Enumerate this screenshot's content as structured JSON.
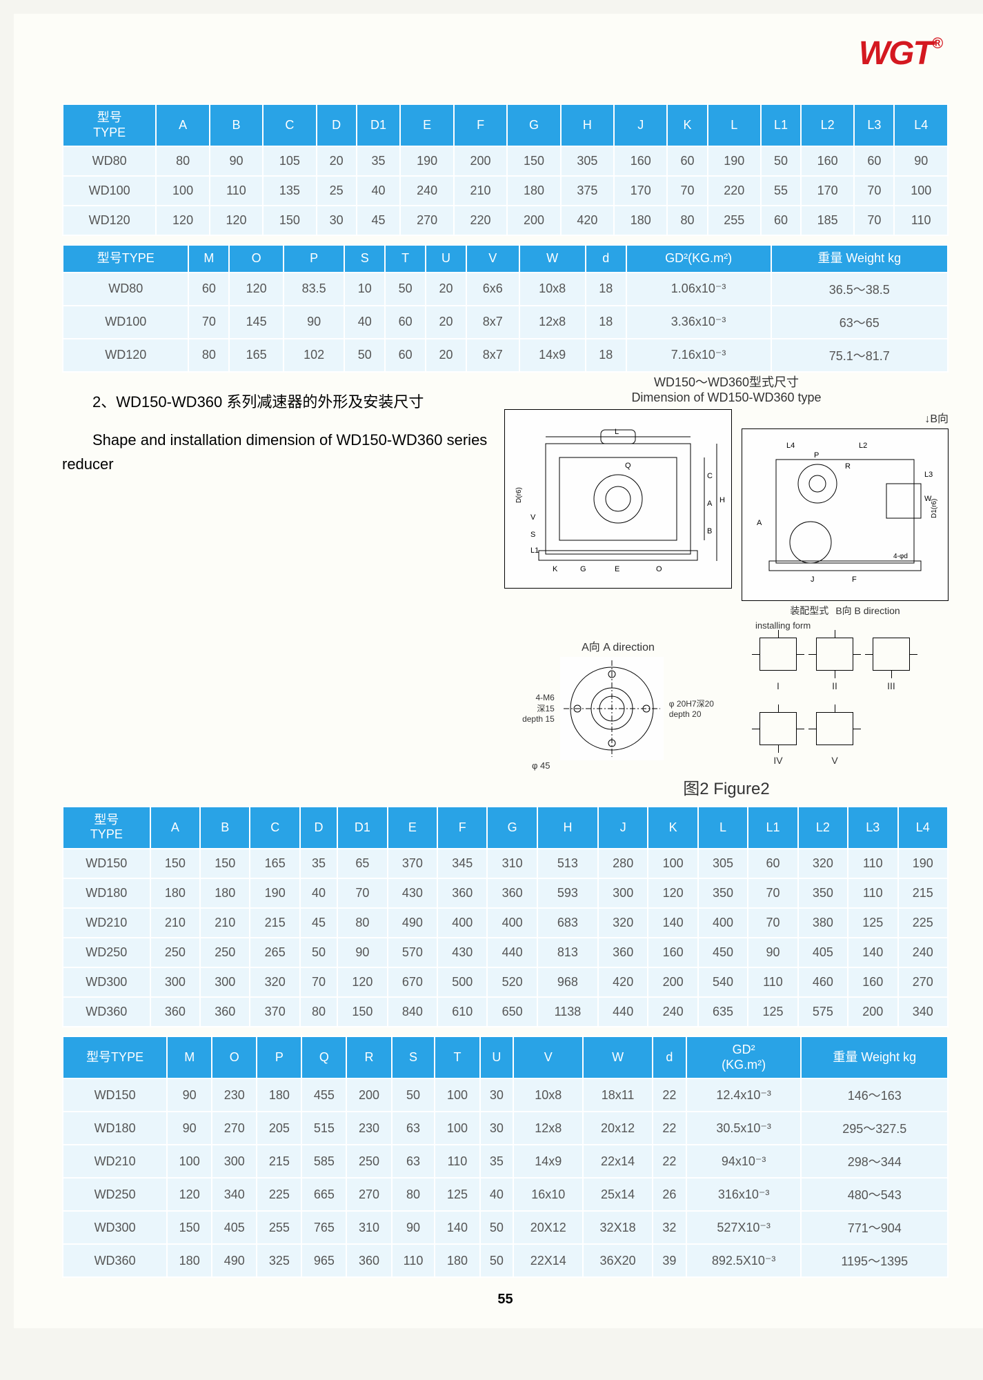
{
  "logo": "WGT",
  "logo_mark": "®",
  "page_number": "55",
  "table1": {
    "headers": [
      "型号\nTYPE",
      "A",
      "B",
      "C",
      "D",
      "D1",
      "E",
      "F",
      "G",
      "H",
      "J",
      "K",
      "L",
      "L1",
      "L2",
      "L3",
      "L4"
    ],
    "rows": [
      [
        "WD80",
        "80",
        "90",
        "105",
        "20",
        "35",
        "190",
        "200",
        "150",
        "305",
        "160",
        "60",
        "190",
        "50",
        "160",
        "60",
        "90"
      ],
      [
        "WD100",
        "100",
        "110",
        "135",
        "25",
        "40",
        "240",
        "210",
        "180",
        "375",
        "170",
        "70",
        "220",
        "55",
        "170",
        "70",
        "100"
      ],
      [
        "WD120",
        "120",
        "120",
        "150",
        "30",
        "45",
        "270",
        "220",
        "200",
        "420",
        "180",
        "80",
        "255",
        "60",
        "185",
        "70",
        "110"
      ]
    ]
  },
  "table2": {
    "headers": [
      "型号TYPE",
      "M",
      "O",
      "P",
      "S",
      "T",
      "U",
      "V",
      "W",
      "d",
      "GD²(KG.m²)",
      "重量 Weight kg"
    ],
    "rows": [
      [
        "WD80",
        "60",
        "120",
        "83.5",
        "10",
        "50",
        "20",
        "6x6",
        "10x8",
        "18",
        "1.06x10⁻³",
        "36.5～38.5"
      ],
      [
        "WD100",
        "70",
        "145",
        "90",
        "40",
        "60",
        "20",
        "8x7",
        "12x8",
        "18",
        "3.36x10⁻³",
        "63～65"
      ],
      [
        "WD120",
        "80",
        "165",
        "102",
        "50",
        "60",
        "20",
        "8x7",
        "14x9",
        "18",
        "7.16x10⁻³",
        "75.1～81.7"
      ]
    ]
  },
  "section": {
    "zh": "2、WD150-WD360 系列减速器的外形及安装尺寸",
    "en": "Shape and installation dimension of WD150-WD360 series reducer"
  },
  "diagram": {
    "title_zh": "WD150～WD360型式尺寸",
    "title_en": "Dimension of WD150-WD360 type",
    "b_dir": "↓B向",
    "a_dir": "A向  A direction",
    "install_zh": "装配型式",
    "install_en": "installing form",
    "b_dir2": "B向  B direction",
    "f_hole": "4-M6",
    "f_depth_zh": "深15",
    "f_depth_en": "depth 15",
    "f_dia": "φ 45",
    "f_slot": "φ 20H7深20",
    "f_slot_en": "depth 20",
    "icons": [
      "I",
      "II",
      "III",
      "IV",
      "V"
    ],
    "dims_main": [
      "L",
      "Q",
      "C",
      "A",
      "B",
      "H",
      "V",
      "S",
      "L1",
      "K",
      "G",
      "E",
      "O",
      "D(r6)"
    ],
    "dims_side": [
      "L4",
      "L2",
      "P",
      "R",
      "L3",
      "W",
      "D1(r6)",
      "A",
      "J",
      "F",
      "4-φd"
    ],
    "figcap": "图2  Figure2"
  },
  "table3": {
    "headers": [
      "型号\nTYPE",
      "A",
      "B",
      "C",
      "D",
      "D1",
      "E",
      "F",
      "G",
      "H",
      "J",
      "K",
      "L",
      "L1",
      "L2",
      "L3",
      "L4"
    ],
    "rows": [
      [
        "WD150",
        "150",
        "150",
        "165",
        "35",
        "65",
        "370",
        "345",
        "310",
        "513",
        "280",
        "100",
        "305",
        "60",
        "320",
        "110",
        "190"
      ],
      [
        "WD180",
        "180",
        "180",
        "190",
        "40",
        "70",
        "430",
        "360",
        "360",
        "593",
        "300",
        "120",
        "350",
        "70",
        "350",
        "110",
        "215"
      ],
      [
        "WD210",
        "210",
        "210",
        "215",
        "45",
        "80",
        "490",
        "400",
        "400",
        "683",
        "320",
        "140",
        "400",
        "70",
        "380",
        "125",
        "225"
      ],
      [
        "WD250",
        "250",
        "250",
        "265",
        "50",
        "90",
        "570",
        "430",
        "440",
        "813",
        "360",
        "160",
        "450",
        "90",
        "405",
        "140",
        "240"
      ],
      [
        "WD300",
        "300",
        "300",
        "320",
        "70",
        "120",
        "670",
        "500",
        "520",
        "968",
        "420",
        "200",
        "540",
        "110",
        "460",
        "160",
        "270"
      ],
      [
        "WD360",
        "360",
        "360",
        "370",
        "80",
        "150",
        "840",
        "610",
        "650",
        "1138",
        "440",
        "240",
        "635",
        "125",
        "575",
        "200",
        "340"
      ]
    ]
  },
  "table4": {
    "headers": [
      "型号TYPE",
      "M",
      "O",
      "P",
      "Q",
      "R",
      "S",
      "T",
      "U",
      "V",
      "W",
      "d",
      "GD²\n(KG.m²)",
      "重量 Weight kg"
    ],
    "rows": [
      [
        "WD150",
        "90",
        "230",
        "180",
        "455",
        "200",
        "50",
        "100",
        "30",
        "10x8",
        "18x11",
        "22",
        "12.4x10⁻³",
        "146～163"
      ],
      [
        "WD180",
        "90",
        "270",
        "205",
        "515",
        "230",
        "63",
        "100",
        "30",
        "12x8",
        "20x12",
        "22",
        "30.5x10⁻³",
        "295～327.5"
      ],
      [
        "WD210",
        "100",
        "300",
        "215",
        "585",
        "250",
        "63",
        "110",
        "35",
        "14x9",
        "22x14",
        "22",
        "94x10⁻³",
        "298～344"
      ],
      [
        "WD250",
        "120",
        "340",
        "225",
        "665",
        "270",
        "80",
        "125",
        "40",
        "16x10",
        "25x14",
        "26",
        "316x10⁻³",
        "480～543"
      ],
      [
        "WD300",
        "150",
        "405",
        "255",
        "765",
        "310",
        "90",
        "140",
        "50",
        "20X12",
        "32X18",
        "32",
        "527X10⁻³",
        "771～904"
      ],
      [
        "WD360",
        "180",
        "490",
        "325",
        "965",
        "360",
        "110",
        "180",
        "50",
        "22X14",
        "36X20",
        "39",
        "892.5X10⁻³",
        "1195～1395"
      ]
    ]
  }
}
